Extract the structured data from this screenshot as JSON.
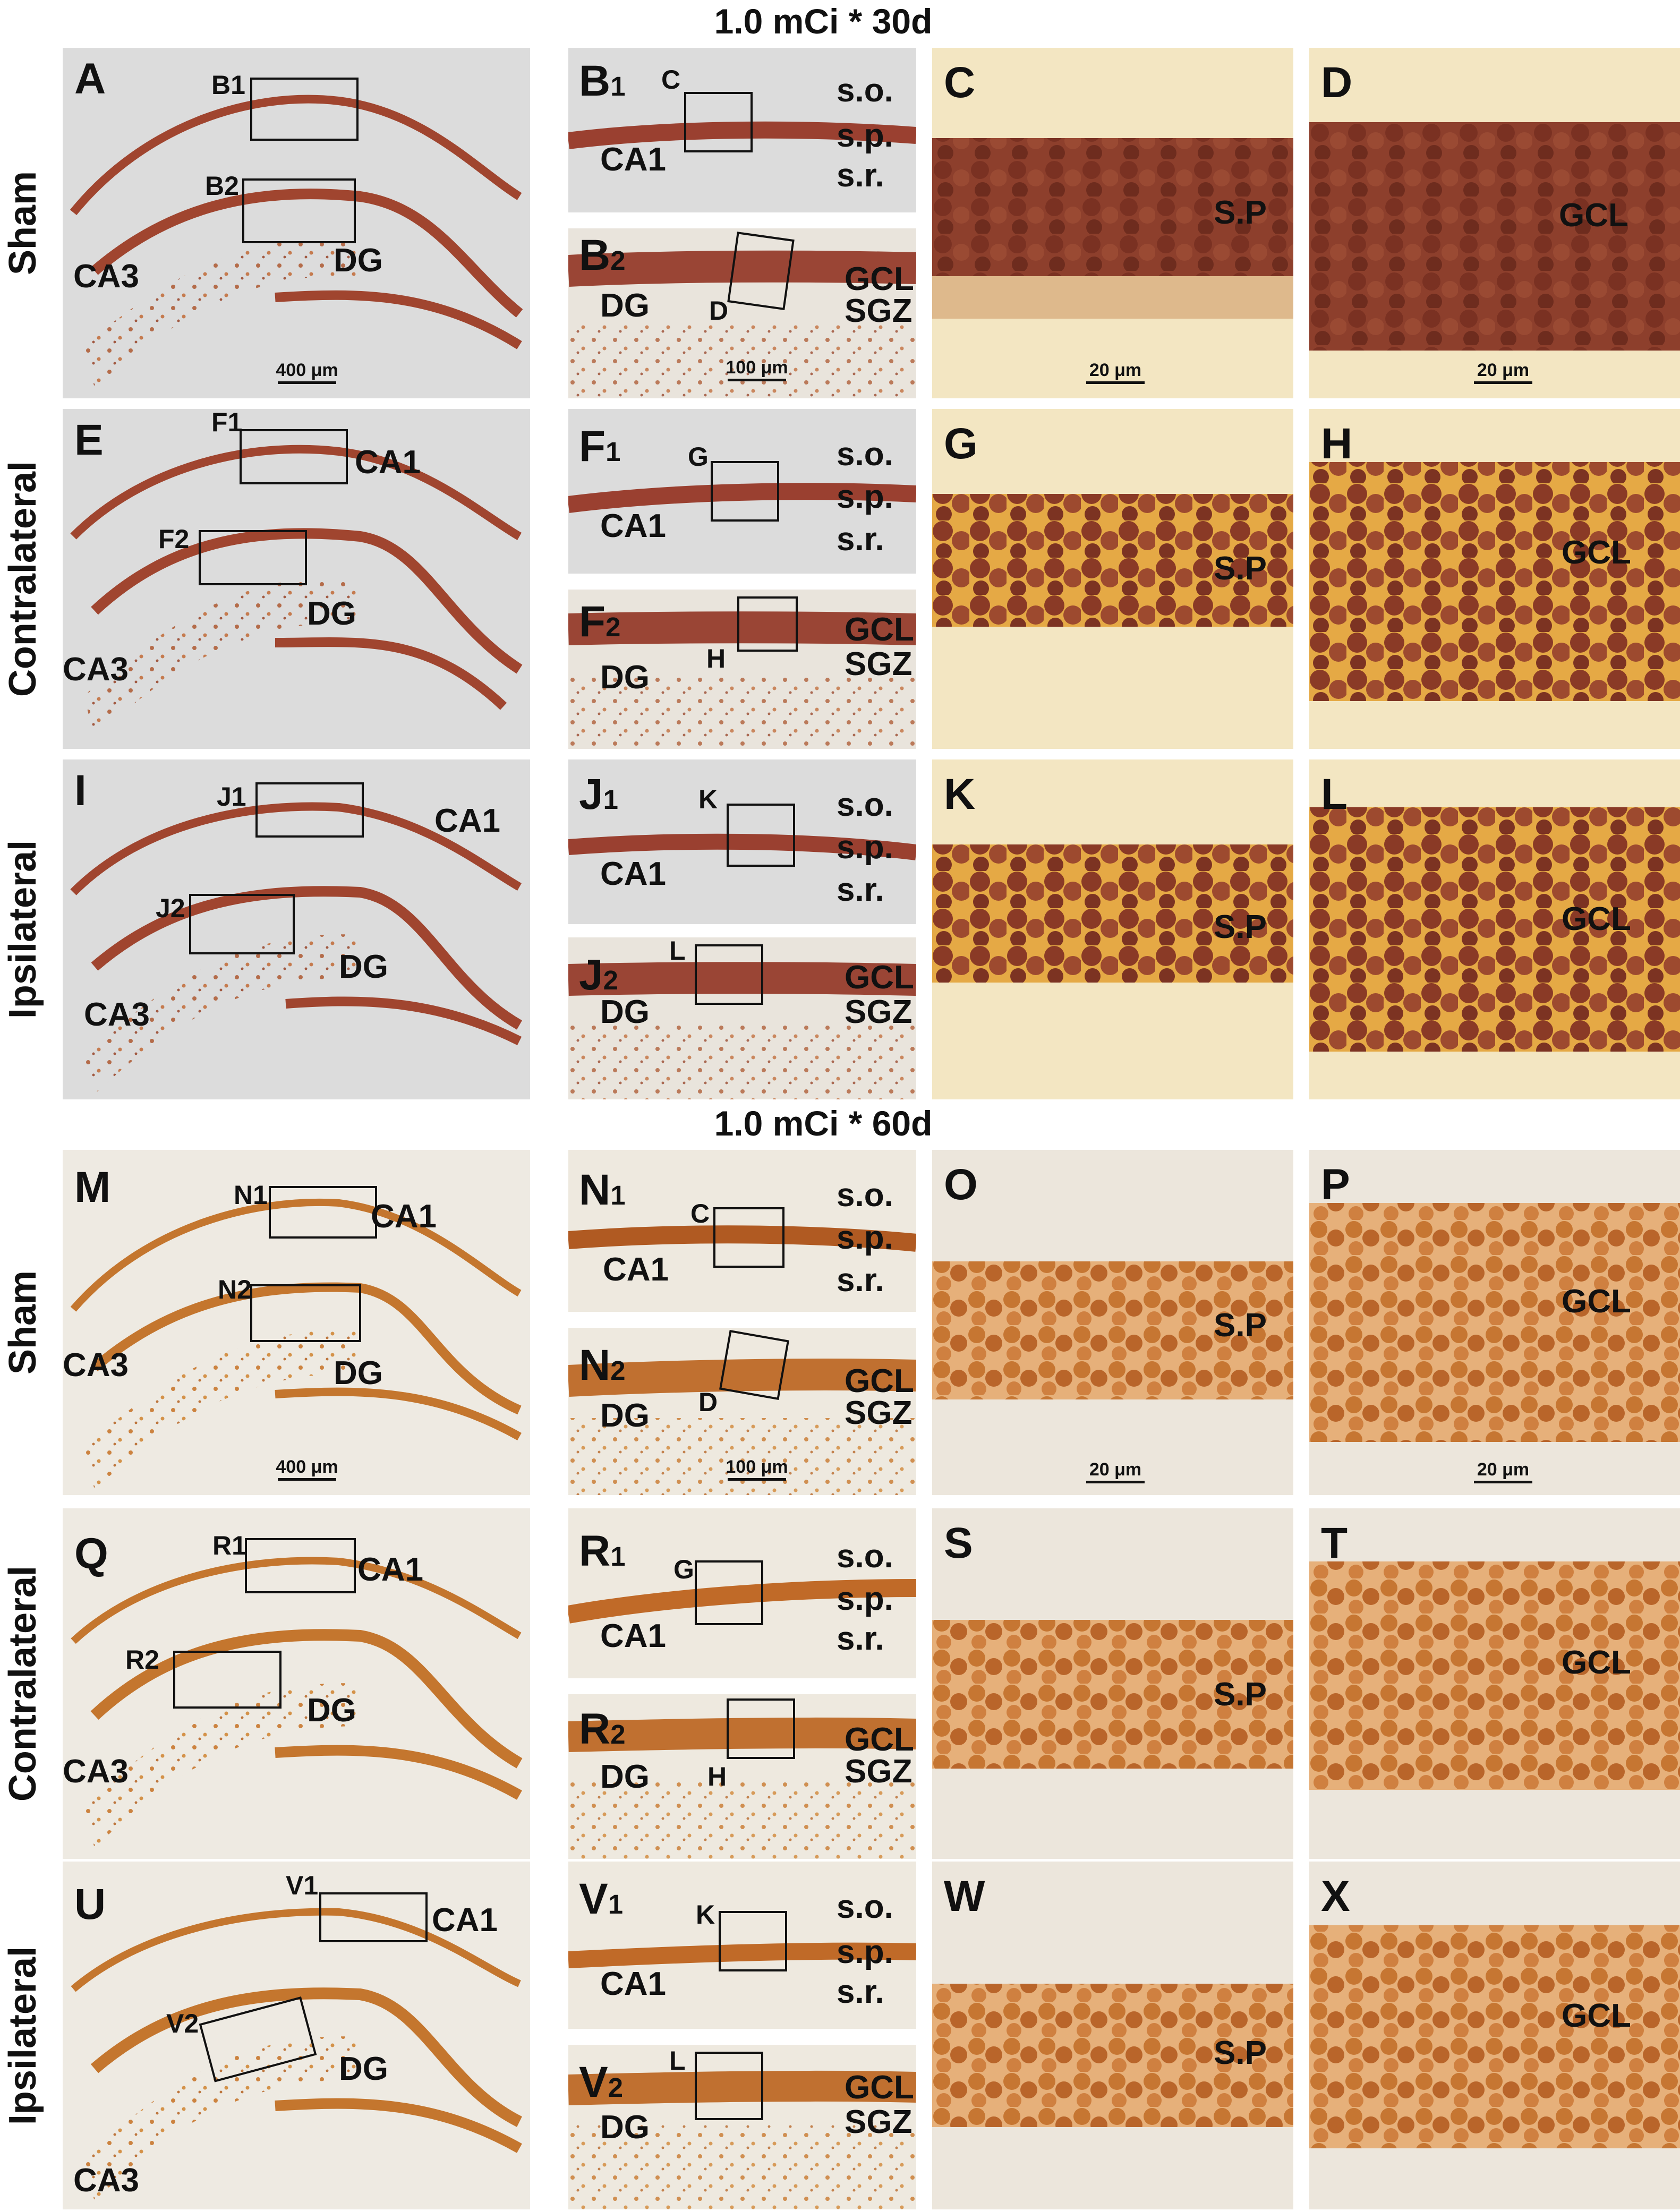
{
  "sections": {
    "s30": {
      "title": "1.0 mCi * 30d"
    },
    "s60": {
      "title": "1.0 mCi * 60d"
    }
  },
  "row_labels": [
    "Sham",
    "Contralateral",
    "Ipsilateral",
    "Sham",
    "Contralateral",
    "Ipsilateral"
  ],
  "overview_labels": {
    "A": {
      "letter": "A",
      "box1": "B1",
      "box2": "B2",
      "ca1": "",
      "ca3": "CA3",
      "dg": "DG"
    },
    "E": {
      "letter": "E",
      "box1": "F1",
      "box2": "F2",
      "ca1": "CA1",
      "ca3": "CA3",
      "dg": "DG"
    },
    "I": {
      "letter": "I",
      "box1": "J1",
      "box2": "J2",
      "ca1": "CA1",
      "ca3": "CA3",
      "dg": "DG"
    },
    "M": {
      "letter": "M",
      "box1": "N1",
      "box2": "N2",
      "ca1": "CA1",
      "ca3": "CA3",
      "dg": "DG"
    },
    "Q": {
      "letter": "Q",
      "box1": "R1",
      "box2": "R2",
      "ca1": "CA1",
      "ca3": "CA3",
      "dg": "DG"
    },
    "U": {
      "letter": "U",
      "box1": "V1",
      "box2": "V2",
      "ca1": "CA1",
      "ca3": "CA3",
      "dg": "DG"
    }
  },
  "ca1_panels": {
    "B1": {
      "main": "B",
      "sub": "1",
      "box": "C",
      "region": "CA1",
      "so": "s.o.",
      "sp": "s.p.",
      "sr": "s.r."
    },
    "F1": {
      "main": "F",
      "sub": "1",
      "box": "G",
      "region": "CA1",
      "so": "s.o.",
      "sp": "s.p.",
      "sr": "s.r."
    },
    "J1": {
      "main": "J",
      "sub": "1",
      "box": "K",
      "region": "CA1",
      "so": "s.o.",
      "sp": "s.p.",
      "sr": "s.r."
    },
    "N1": {
      "main": "N",
      "sub": "1",
      "box": "C",
      "region": "CA1",
      "so": "s.o.",
      "sp": "s.p.",
      "sr": "s.r."
    },
    "R1": {
      "main": "R",
      "sub": "1",
      "box": "G",
      "region": "CA1",
      "so": "s.o.",
      "sp": "s.p.",
      "sr": "s.r."
    },
    "V1": {
      "main": "V",
      "sub": "1",
      "box": "K",
      "region": "CA1",
      "so": "s.o.",
      "sp": "s.p.",
      "sr": "s.r."
    }
  },
  "dg_panels": {
    "B2": {
      "main": "B",
      "sub": "2",
      "box": "D",
      "region": "DG",
      "gcl": "GCL",
      "sgz": "SGZ"
    },
    "F2": {
      "main": "F",
      "sub": "2",
      "box": "H",
      "region": "DG",
      "gcl": "GCL",
      "sgz": "SGZ"
    },
    "J2": {
      "main": "J",
      "sub": "2",
      "box": "L",
      "region": "DG",
      "gcl": "GCL",
      "sgz": "SGZ"
    },
    "N2": {
      "main": "N",
      "sub": "2",
      "box": "D",
      "region": "DG",
      "gcl": "GCL",
      "sgz": "SGZ"
    },
    "R2": {
      "main": "R",
      "sub": "2",
      "box": "H",
      "region": "DG",
      "gcl": "GCL",
      "sgz": "SGZ"
    },
    "V2": {
      "main": "V",
      "sub": "2",
      "box": "L",
      "region": "DG",
      "gcl": "GCL",
      "sgz": "SGZ"
    }
  },
  "hi_panels": {
    "C": {
      "letter": "C",
      "layer": "S.P"
    },
    "D": {
      "letter": "D",
      "layer": "GCL"
    },
    "G": {
      "letter": "G",
      "layer": "S.P"
    },
    "H": {
      "letter": "H",
      "layer": "GCL"
    },
    "K": {
      "letter": "K",
      "layer": "S.P"
    },
    "L": {
      "letter": "L",
      "layer": "GCL"
    },
    "O": {
      "letter": "O",
      "layer": "S.P"
    },
    "P": {
      "letter": "P",
      "layer": "GCL"
    },
    "S": {
      "letter": "S",
      "layer": "S.P"
    },
    "T": {
      "letter": "T",
      "layer": "GCL"
    },
    "W": {
      "letter": "W",
      "layer": "S.P"
    },
    "X": {
      "letter": "X",
      "layer": "GCL"
    }
  },
  "scale_bars": {
    "overview": "400 μm",
    "subfield": "100 μm",
    "high": "20 μm"
  },
  "colors": {
    "stain_dark_30d": "#8a3b2a",
    "stain_30d_band": "#a0452f",
    "stain_30d_bg_contra": "#e8b84a",
    "stain_60d": "#c4762e",
    "stain_60d_dark": "#a85a22",
    "background_grey": "#dcdcdc"
  }
}
